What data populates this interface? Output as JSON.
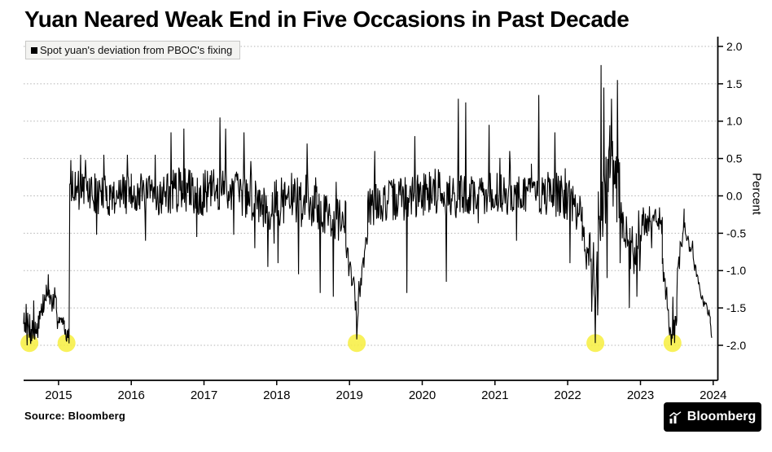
{
  "header": {
    "title": "Yuan Neared Weak End in Five Occasions in Past Decade"
  },
  "legend": {
    "label": "Spot yuan's deviation from PBOC's fixing"
  },
  "source": {
    "text": "Source: Bloomberg"
  },
  "branding": {
    "logo_text": "Bloomberg"
  },
  "chart_data": {
    "type": "line",
    "title": "Yuan Neared Weak End in Five Occasions in Past Decade",
    "series_name": "Spot yuan's deviation from PBOC's fixing",
    "xlabel": "",
    "ylabel": "Percent",
    "ylim": [
      -2.0,
      2.0
    ],
    "y_ticks": [
      2.0,
      1.5,
      1.0,
      0.5,
      0.0,
      -0.5,
      -1.0,
      -1.5,
      -2.0
    ],
    "y_tick_labels": [
      "2.0",
      "1.5",
      "1.0",
      "0.5",
      "0.0",
      "-0.5",
      "-1.0",
      "-1.5",
      "-2.0"
    ],
    "x_ticks": [
      2015,
      2016,
      2017,
      2018,
      2019,
      2020,
      2021,
      2022,
      2023,
      2024
    ],
    "x_tick_labels": [
      "2015",
      "2016",
      "2017",
      "2018",
      "2019",
      "2020",
      "2021",
      "2022",
      "2023",
      "2024"
    ],
    "x_range": [
      2014.52,
      2023.98
    ],
    "grid": "dotted-horizontal",
    "legend_position": "top-left",
    "line_color": "#000000",
    "grid_color": "#b3b3b3",
    "highlight_color": "#f7ef3e",
    "noise_seed": 7,
    "segments": [
      [
        2014.52,
        2014.68,
        24,
        -1.6,
        -1.85,
        0.22
      ],
      [
        2014.68,
        2014.83,
        22,
        -1.8,
        -1.35,
        0.18
      ],
      [
        2014.83,
        2014.97,
        20,
        -1.3,
        -1.5,
        0.15
      ],
      [
        2014.97,
        2015.08,
        16,
        -1.55,
        -1.75,
        0.12
      ],
      [
        2015.08,
        2015.145,
        9,
        -1.8,
        -1.88,
        0.1
      ],
      [
        2015.155,
        2015.4,
        34,
        0.15,
        0.1,
        0.22
      ],
      [
        2015.4,
        2015.7,
        40,
        0.05,
        0.0,
        0.28
      ],
      [
        2015.7,
        2016.0,
        40,
        0.0,
        0.05,
        0.26
      ],
      [
        2016.0,
        2016.4,
        52,
        0.05,
        0.0,
        0.27
      ],
      [
        2016.4,
        2016.7,
        40,
        0.0,
        0.1,
        0.3
      ],
      [
        2016.7,
        2017.0,
        40,
        0.1,
        0.0,
        0.3
      ],
      [
        2017.0,
        2017.4,
        52,
        0.05,
        0.1,
        0.3
      ],
      [
        2017.4,
        2017.8,
        52,
        0.05,
        -0.05,
        0.32
      ],
      [
        2017.8,
        2018.15,
        46,
        -0.15,
        -0.05,
        0.33
      ],
      [
        2018.15,
        2018.55,
        52,
        0.0,
        -0.05,
        0.32
      ],
      [
        2018.55,
        2018.95,
        52,
        -0.2,
        -0.35,
        0.3
      ],
      [
        2018.95,
        2019.12,
        18,
        -0.7,
        -1.6,
        0.22
      ],
      [
        2019.12,
        2019.25,
        16,
        -1.35,
        -0.4,
        0.2
      ],
      [
        2019.25,
        2019.6,
        44,
        -0.15,
        -0.05,
        0.28
      ],
      [
        2019.6,
        2020.0,
        52,
        -0.05,
        0.0,
        0.3
      ],
      [
        2020.0,
        2020.3,
        40,
        0.05,
        0.1,
        0.32
      ],
      [
        2020.3,
        2020.7,
        52,
        0.0,
        0.0,
        0.3
      ],
      [
        2020.7,
        2021.1,
        52,
        0.0,
        0.05,
        0.28
      ],
      [
        2021.1,
        2021.5,
        52,
        0.0,
        0.05,
        0.27
      ],
      [
        2021.5,
        2021.95,
        58,
        0.05,
        0.0,
        0.3
      ],
      [
        2021.95,
        2022.2,
        32,
        -0.05,
        -0.25,
        0.28
      ],
      [
        2022.2,
        2022.42,
        28,
        -0.6,
        -1.1,
        0.4
      ],
      [
        2022.42,
        2022.58,
        22,
        -0.3,
        0.4,
        0.55
      ],
      [
        2022.58,
        2022.75,
        24,
        0.35,
        -0.1,
        0.5
      ],
      [
        2022.75,
        2023.0,
        32,
        -0.55,
        -0.8,
        0.35
      ],
      [
        2023.0,
        2023.3,
        40,
        -0.35,
        -0.3,
        0.22
      ],
      [
        2023.3,
        2023.4,
        14,
        -0.85,
        -1.7,
        0.18
      ],
      [
        2023.4,
        2023.5,
        14,
        -1.85,
        -1.65,
        0.15
      ],
      [
        2023.5,
        2023.6,
        12,
        -1.15,
        -0.35,
        0.18
      ],
      [
        2023.6,
        2023.86,
        30,
        -0.38,
        -1.4,
        0.09
      ],
      [
        2023.86,
        2023.96,
        12,
        -1.42,
        -1.58,
        0.06
      ],
      [
        2023.96,
        2023.98,
        4,
        -1.7,
        -1.9,
        0.04
      ]
    ],
    "spikes": [
      [
        2014.57,
        -2.0
      ],
      [
        2014.62,
        -1.98
      ],
      [
        2014.66,
        -1.4
      ],
      [
        2014.86,
        -1.05
      ],
      [
        2015.11,
        -1.95
      ],
      [
        2015.17,
        0.48
      ],
      [
        2015.3,
        0.55
      ],
      [
        2015.52,
        -0.52
      ],
      [
        2015.62,
        0.55
      ],
      [
        2015.95,
        0.55
      ],
      [
        2016.2,
        -0.6
      ],
      [
        2016.33,
        0.55
      ],
      [
        2016.55,
        0.85
      ],
      [
        2016.72,
        0.9
      ],
      [
        2016.9,
        -0.55
      ],
      [
        2017.22,
        1.05
      ],
      [
        2017.3,
        0.9
      ],
      [
        2017.55,
        0.85
      ],
      [
        2017.7,
        -0.7
      ],
      [
        2017.88,
        -0.95
      ],
      [
        2018.02,
        -0.9
      ],
      [
        2018.3,
        -1.05
      ],
      [
        2018.42,
        0.7
      ],
      [
        2018.6,
        -1.3
      ],
      [
        2018.78,
        -1.35
      ],
      [
        2019.1,
        -1.92
      ],
      [
        2019.35,
        0.6
      ],
      [
        2019.79,
        -1.3
      ],
      [
        2019.9,
        0.8
      ],
      [
        2020.33,
        -1.15
      ],
      [
        2020.5,
        1.3
      ],
      [
        2020.6,
        1.25
      ],
      [
        2020.92,
        0.95
      ],
      [
        2021.2,
        0.6
      ],
      [
        2021.3,
        -0.6
      ],
      [
        2021.6,
        1.35
      ],
      [
        2021.82,
        0.85
      ],
      [
        2022.03,
        -0.9
      ],
      [
        2022.33,
        -1.55
      ],
      [
        2022.38,
        -1.97
      ],
      [
        2022.41,
        -1.6
      ],
      [
        2022.46,
        1.75
      ],
      [
        2022.5,
        1.45
      ],
      [
        2022.54,
        -1.1
      ],
      [
        2022.6,
        1.3
      ],
      [
        2022.68,
        1.55
      ],
      [
        2022.72,
        -0.9
      ],
      [
        2022.85,
        -1.5
      ],
      [
        2022.95,
        -1.35
      ],
      [
        2023.15,
        -0.7
      ],
      [
        2023.42,
        -2.0
      ],
      [
        2023.445,
        -1.35
      ],
      [
        2023.47,
        -1.97
      ],
      [
        2023.72,
        -0.6
      ],
      [
        2023.98,
        -1.9
      ]
    ],
    "highlights": [
      [
        2014.6,
        -1.97
      ],
      [
        2015.11,
        -1.97
      ],
      [
        2019.1,
        -1.97
      ],
      [
        2022.38,
        -1.97
      ],
      [
        2023.44,
        -1.97
      ]
    ]
  }
}
